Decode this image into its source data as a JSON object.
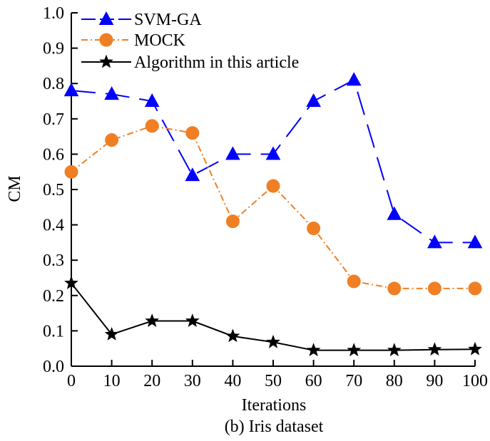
{
  "chart_data": {
    "type": "line",
    "title": "(b) Iris dataset",
    "xlabel": "Iterations",
    "ylabel": "CM",
    "x": [
      0,
      10,
      20,
      30,
      40,
      50,
      60,
      70,
      80,
      90,
      100
    ],
    "xlim": [
      0,
      100
    ],
    "ylim": [
      0,
      1.0
    ],
    "x_ticks": [
      "0",
      "10",
      "20",
      "30",
      "40",
      "50",
      "60",
      "70",
      "80",
      "90",
      "100"
    ],
    "y_ticks": [
      "0.0",
      "0.1",
      "0.2",
      "0.3",
      "0.4",
      "0.5",
      "0.6",
      "0.7",
      "0.8",
      "0.9",
      "1.0"
    ],
    "grid": false,
    "legend_position": "top-left",
    "series": [
      {
        "name": "SVM-GA",
        "color": "#0000ff",
        "marker": "triangle",
        "line_style": "long-dash",
        "values": [
          0.78,
          0.77,
          0.75,
          0.54,
          0.6,
          0.6,
          0.75,
          0.81,
          0.43,
          0.35,
          0.35
        ]
      },
      {
        "name": "MOCK",
        "color": "#f07f24",
        "marker": "circle",
        "line_style": "dash-dot",
        "values": [
          0.55,
          0.64,
          0.68,
          0.66,
          0.41,
          0.51,
          0.39,
          0.24,
          0.22,
          0.22,
          0.22
        ]
      },
      {
        "name": "Algorithm in this article",
        "color": "#000000",
        "marker": "star",
        "line_style": "solid",
        "values": [
          0.235,
          0.09,
          0.128,
          0.128,
          0.085,
          0.068,
          0.045,
          0.045,
          0.045,
          0.047,
          0.048
        ]
      }
    ]
  }
}
